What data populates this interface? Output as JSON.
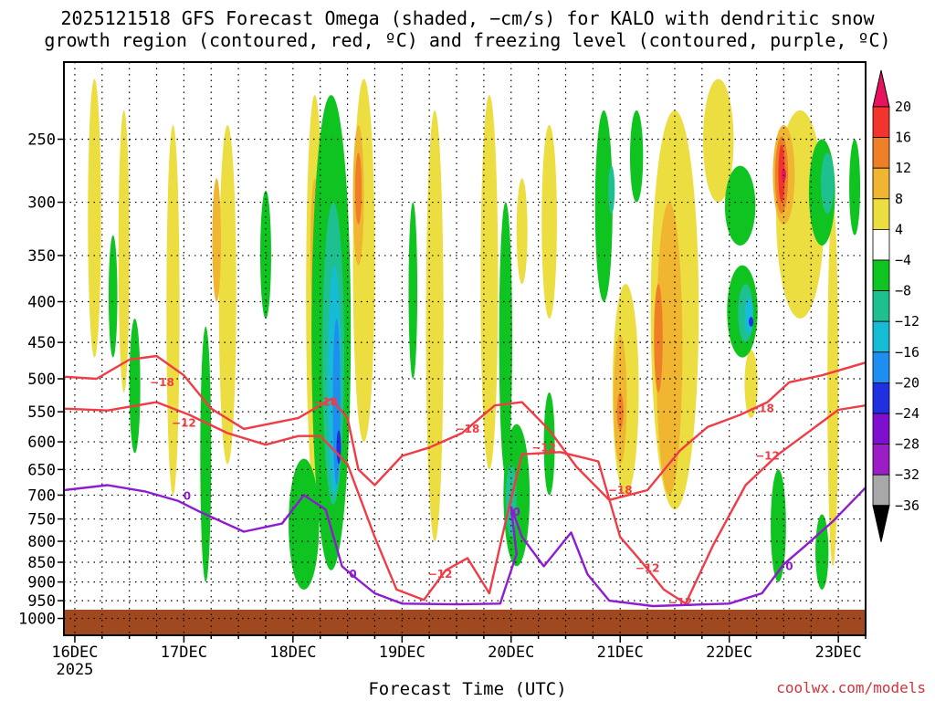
{
  "chart_data": {
    "type": "heatmap",
    "title_line1": "2025121518 GFS Forecast Omega (shaded, −cm/s) for KALO with dendritic snow",
    "title_line2": "growth region (contoured, red, ºC) and freezing level (contoured, purple, ºC)",
    "xlabel": "Forecast Time (UTC)",
    "ylabel": "",
    "x_ticks": [
      {
        "day": 0,
        "label": "16DEC",
        "sub": "2025"
      },
      {
        "day": 1,
        "label": "17DEC",
        "sub": ""
      },
      {
        "day": 2,
        "label": "18DEC",
        "sub": ""
      },
      {
        "day": 3,
        "label": "19DEC",
        "sub": ""
      },
      {
        "day": 4,
        "label": "20DEC",
        "sub": ""
      },
      {
        "day": 5,
        "label": "21DEC",
        "sub": ""
      },
      {
        "day": 6,
        "label": "22DEC",
        "sub": ""
      },
      {
        "day": 7,
        "label": "23DEC",
        "sub": ""
      }
    ],
    "xlim_days": [
      -0.1,
      7.25
    ],
    "y_ticks": [
      250,
      300,
      350,
      400,
      450,
      500,
      550,
      600,
      650,
      700,
      750,
      800,
      850,
      900,
      950,
      1000
    ],
    "y_tick_labels": [
      "250",
      "300",
      "350",
      "400",
      "450",
      "500",
      "550",
      "600",
      "650",
      "700",
      "750",
      "800",
      "850",
      "900",
      "950",
      "1000"
    ],
    "ylim_hpa": [
      200,
      1050
    ],
    "y_scale": "log-pressure",
    "grid": true,
    "colorbar": {
      "levels": [
        20,
        16,
        12,
        8,
        4,
        -4,
        -8,
        -12,
        -16,
        -20,
        -24,
        -28,
        -32,
        -36
      ],
      "labels": [
        "20",
        "16",
        "12",
        "8",
        "4",
        "−4",
        "−8",
        "−12",
        "−16",
        "−20",
        "−24",
        "−28",
        "−32",
        "−36"
      ],
      "colors": [
        "#e8135e",
        "#f2332e",
        "#ee7f27",
        "#f0b632",
        "#ecdd40",
        "#ffffff",
        "#0fc320",
        "#1ec08f",
        "#16bbd6",
        "#1e8ff0",
        "#1f30e0",
        "#7f0fcf",
        "#9b1dc6",
        "#a8a8a8",
        "#000000"
      ]
    },
    "shading_colors": {
      "y4": "#ecdd40",
      "y8": "#f0b632",
      "o12": "#ee7f27",
      "r16": "#f2332e",
      "m20": "#e8135e",
      "g4": "#0fc320",
      "t8": "#1ec08f",
      "c12": "#16bbd6",
      "b16": "#1e8ff0",
      "b20": "#1f30e0"
    },
    "omega_regions": [
      {
        "level": "y4",
        "day": 0.18,
        "p_top": 210,
        "p_bot": 470,
        "w": 0.06
      },
      {
        "level": "y4",
        "day": 0.45,
        "p_top": 230,
        "p_bot": 520,
        "w": 0.05
      },
      {
        "level": "y4",
        "day": 0.9,
        "p_top": 240,
        "p_bot": 700,
        "w": 0.06
      },
      {
        "level": "y4",
        "day": 1.4,
        "p_top": 240,
        "p_bot": 640,
        "w": 0.08
      },
      {
        "level": "y8",
        "day": 1.3,
        "p_top": 280,
        "p_bot": 400,
        "w": 0.04
      },
      {
        "level": "y4",
        "day": 2.2,
        "p_top": 220,
        "p_bot": 700,
        "w": 0.08
      },
      {
        "level": "y8",
        "day": 2.2,
        "p_top": 280,
        "p_bot": 420,
        "w": 0.04
      },
      {
        "level": "y4",
        "day": 2.65,
        "p_top": 210,
        "p_bot": 600,
        "w": 0.1
      },
      {
        "level": "y8",
        "day": 2.6,
        "p_top": 240,
        "p_bot": 360,
        "w": 0.05
      },
      {
        "level": "o12",
        "day": 2.6,
        "p_top": 260,
        "p_bot": 320,
        "w": 0.03
      },
      {
        "level": "y4",
        "day": 3.3,
        "p_top": 230,
        "p_bot": 800,
        "w": 0.08
      },
      {
        "level": "y4",
        "day": 3.8,
        "p_top": 220,
        "p_bot": 650,
        "w": 0.08
      },
      {
        "level": "y4",
        "day": 4.1,
        "p_top": 280,
        "p_bot": 380,
        "w": 0.05
      },
      {
        "level": "y4",
        "day": 4.35,
        "p_top": 240,
        "p_bot": 420,
        "w": 0.07
      },
      {
        "level": "y4",
        "day": 4.85,
        "p_top": 250,
        "p_bot": 380,
        "w": 0.05
      },
      {
        "level": "y4",
        "day": 5.05,
        "p_top": 380,
        "p_bot": 700,
        "w": 0.12
      },
      {
        "level": "y8",
        "day": 5.0,
        "p_top": 440,
        "p_bot": 640,
        "w": 0.06
      },
      {
        "level": "o12",
        "day": 5.0,
        "p_top": 520,
        "p_bot": 580,
        "w": 0.03
      },
      {
        "level": "y4",
        "day": 5.5,
        "p_top": 230,
        "p_bot": 730,
        "w": 0.22
      },
      {
        "level": "y8",
        "day": 5.45,
        "p_top": 300,
        "p_bot": 700,
        "w": 0.12
      },
      {
        "level": "o12",
        "day": 5.35,
        "p_top": 380,
        "p_bot": 520,
        "w": 0.04
      },
      {
        "level": "y4",
        "day": 5.9,
        "p_top": 210,
        "p_bot": 300,
        "w": 0.14
      },
      {
        "level": "y4",
        "day": 6.2,
        "p_top": 460,
        "p_bot": 560,
        "w": 0.06
      },
      {
        "level": "y4",
        "day": 6.65,
        "p_top": 230,
        "p_bot": 420,
        "w": 0.22
      },
      {
        "level": "y8",
        "day": 6.5,
        "p_top": 240,
        "p_bot": 320,
        "w": 0.1
      },
      {
        "level": "o12",
        "day": 6.48,
        "p_top": 248,
        "p_bot": 310,
        "w": 0.06
      },
      {
        "level": "r16",
        "day": 6.48,
        "p_top": 254,
        "p_bot": 300,
        "w": 0.03
      },
      {
        "level": "m20",
        "day": 6.5,
        "p_top": 272,
        "p_bot": 282,
        "w": 0.01
      },
      {
        "level": "y4",
        "day": 6.95,
        "p_top": 300,
        "p_bot": 860,
        "w": 0.05
      },
      {
        "level": "g4",
        "day": 0.35,
        "p_top": 330,
        "p_bot": 470,
        "w": 0.04
      },
      {
        "level": "g4",
        "day": 0.55,
        "p_top": 420,
        "p_bot": 620,
        "w": 0.05
      },
      {
        "level": "g4",
        "day": 1.2,
        "p_top": 430,
        "p_bot": 900,
        "w": 0.05
      },
      {
        "level": "g4",
        "day": 1.75,
        "p_top": 290,
        "p_bot": 420,
        "w": 0.05
      },
      {
        "level": "g4",
        "day": 2.1,
        "p_top": 630,
        "p_bot": 920,
        "w": 0.14
      },
      {
        "level": "g4",
        "day": 2.35,
        "p_top": 220,
        "p_bot": 870,
        "w": 0.18
      },
      {
        "level": "t8",
        "day": 2.37,
        "p_top": 300,
        "p_bot": 720,
        "w": 0.1
      },
      {
        "level": "c12",
        "day": 2.38,
        "p_top": 360,
        "p_bot": 700,
        "w": 0.06
      },
      {
        "level": "b16",
        "day": 2.4,
        "p_top": 420,
        "p_bot": 680,
        "w": 0.035
      },
      {
        "level": "b20",
        "day": 2.42,
        "p_top": 580,
        "p_bot": 640,
        "w": 0.015
      },
      {
        "level": "g4",
        "day": 3.1,
        "p_top": 300,
        "p_bot": 500,
        "w": 0.04
      },
      {
        "level": "g4",
        "day": 3.95,
        "p_top": 300,
        "p_bot": 660,
        "w": 0.06
      },
      {
        "level": "g4",
        "day": 4.05,
        "p_top": 570,
        "p_bot": 860,
        "w": 0.12
      },
      {
        "level": "t8",
        "day": 4.0,
        "p_top": 640,
        "p_bot": 790,
        "w": 0.05
      },
      {
        "level": "g4",
        "day": 4.35,
        "p_top": 520,
        "p_bot": 700,
        "w": 0.05
      },
      {
        "level": "g4",
        "day": 4.85,
        "p_top": 230,
        "p_bot": 400,
        "w": 0.08
      },
      {
        "level": "t8",
        "day": 4.92,
        "p_top": 270,
        "p_bot": 310,
        "w": 0.03
      },
      {
        "level": "g4",
        "day": 5.15,
        "p_top": 230,
        "p_bot": 300,
        "w": 0.06
      },
      {
        "level": "g4",
        "day": 6.1,
        "p_top": 270,
        "p_bot": 340,
        "w": 0.14
      },
      {
        "level": "g4",
        "day": 6.12,
        "p_top": 360,
        "p_bot": 470,
        "w": 0.14
      },
      {
        "level": "t8",
        "day": 6.15,
        "p_top": 380,
        "p_bot": 450,
        "w": 0.07
      },
      {
        "level": "c12",
        "day": 6.18,
        "p_top": 395,
        "p_bot": 440,
        "w": 0.04
      },
      {
        "level": "b20",
        "day": 6.2,
        "p_top": 418,
        "p_bot": 430,
        "w": 0.012
      },
      {
        "level": "g4",
        "day": 6.45,
        "p_top": 650,
        "p_bot": 900,
        "w": 0.07
      },
      {
        "level": "g4",
        "day": 6.85,
        "p_top": 250,
        "p_bot": 340,
        "w": 0.12
      },
      {
        "level": "t8",
        "day": 6.9,
        "p_top": 260,
        "p_bot": 310,
        "w": 0.06
      },
      {
        "level": "g4",
        "day": 6.85,
        "p_top": 740,
        "p_bot": 920,
        "w": 0.06
      },
      {
        "level": "g4",
        "day": 7.15,
        "p_top": 250,
        "p_bot": 330,
        "w": 0.05
      }
    ],
    "contours": [
      {
        "name": "-18",
        "color": "#f03c46",
        "label": "−18",
        "label_at": [
          [
            0.8,
            505
          ],
          [
            2.3,
            535
          ],
          [
            3.6,
            578
          ],
          [
            5.0,
            690
          ],
          [
            6.3,
            545
          ]
        ],
        "points": [
          [
            -0.1,
            497
          ],
          [
            0.2,
            500
          ],
          [
            0.5,
            473
          ],
          [
            0.75,
            468
          ],
          [
            1.0,
            495
          ],
          [
            1.25,
            545
          ],
          [
            1.55,
            578
          ],
          [
            2.05,
            560
          ],
          [
            2.35,
            530
          ],
          [
            2.5,
            560
          ],
          [
            2.6,
            650
          ],
          [
            2.75,
            680
          ],
          [
            3.0,
            625
          ],
          [
            3.25,
            610
          ],
          [
            3.55,
            585
          ],
          [
            3.85,
            540
          ],
          [
            4.1,
            535
          ],
          [
            4.35,
            580
          ],
          [
            4.6,
            645
          ],
          [
            4.9,
            710
          ],
          [
            5.25,
            690
          ],
          [
            5.55,
            615
          ],
          [
            5.8,
            575
          ],
          [
            6.1,
            555
          ],
          [
            6.35,
            535
          ],
          [
            6.55,
            505
          ],
          [
            6.85,
            495
          ],
          [
            7.25,
            477
          ]
        ]
      },
      {
        "name": "-12",
        "color": "#f03c46",
        "label": "−12",
        "label_at": [
          [
            1.0,
            568
          ],
          [
            3.35,
            880
          ],
          [
            4.3,
            610
          ],
          [
            5.25,
            865
          ],
          [
            5.55,
            955
          ],
          [
            6.35,
            625
          ]
        ],
        "points": [
          [
            -0.1,
            545
          ],
          [
            0.3,
            548
          ],
          [
            0.75,
            535
          ],
          [
            1.05,
            555
          ],
          [
            1.4,
            585
          ],
          [
            1.75,
            605
          ],
          [
            2.05,
            590
          ],
          [
            2.25,
            590
          ],
          [
            2.5,
            640
          ],
          [
            2.75,
            790
          ],
          [
            2.95,
            920
          ],
          [
            3.2,
            948
          ],
          [
            3.4,
            870
          ],
          [
            3.6,
            840
          ],
          [
            3.8,
            930
          ],
          [
            3.95,
            755
          ],
          [
            4.1,
            622
          ],
          [
            4.45,
            618
          ],
          [
            4.8,
            635
          ],
          [
            5.0,
            790
          ],
          [
            5.2,
            850
          ],
          [
            5.4,
            920
          ],
          [
            5.6,
            958
          ],
          [
            5.85,
            810
          ],
          [
            6.15,
            680
          ],
          [
            6.45,
            622
          ],
          [
            6.75,
            580
          ],
          [
            7.0,
            547
          ],
          [
            7.25,
            540
          ]
        ]
      },
      {
        "name": "0",
        "color": "#8e1bd2",
        "label": "0",
        "label_at": [
          [
            1.03,
            702
          ],
          [
            2.55,
            880
          ],
          [
            4.05,
            735
          ],
          [
            6.55,
            860
          ]
        ],
        "points": [
          [
            -0.1,
            690
          ],
          [
            0.3,
            680
          ],
          [
            0.65,
            693
          ],
          [
            0.95,
            712
          ],
          [
            1.15,
            735
          ],
          [
            1.55,
            778
          ],
          [
            1.9,
            760
          ],
          [
            2.1,
            700
          ],
          [
            2.3,
            730
          ],
          [
            2.45,
            860
          ],
          [
            2.6,
            895
          ],
          [
            2.75,
            930
          ],
          [
            3.0,
            958
          ],
          [
            3.5,
            960
          ],
          [
            3.9,
            958
          ],
          [
            4.05,
            830
          ],
          [
            4.0,
            725
          ],
          [
            4.1,
            790
          ],
          [
            4.3,
            860
          ],
          [
            4.55,
            780
          ],
          [
            4.7,
            880
          ],
          [
            4.9,
            950
          ],
          [
            5.3,
            965
          ],
          [
            6.0,
            958
          ],
          [
            6.3,
            930
          ],
          [
            6.5,
            855
          ],
          [
            6.7,
            810
          ],
          [
            6.95,
            755
          ],
          [
            7.25,
            685
          ]
        ]
      }
    ]
  },
  "credit": "coolwx.com/models"
}
